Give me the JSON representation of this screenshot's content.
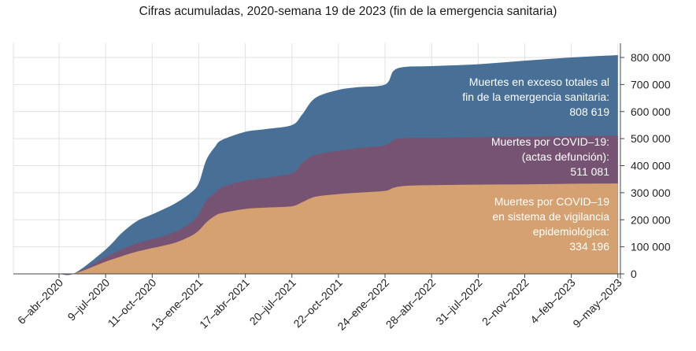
{
  "colors": {
    "excess": "#486f96",
    "actas": "#775373",
    "vigilancia": "#d6a170",
    "grid": "#e1e1e1",
    "axis": "#444444",
    "text": "#222222",
    "annotation_text": "#ffffff"
  },
  "chart_data": {
    "type": "area",
    "title": "Cifras acumuladas, 2020-semana 19 de 2023 (fin de la emergencia sanitaria)",
    "x_ticks": [
      "6–abr–2020",
      "9–jul–2020",
      "11–oct–2020",
      "13–ene–2021",
      "17–abr–2021",
      "20–jul–2021",
      "22–oct–2021",
      "24–ene–2022",
      "28–abr–2022",
      "31–jul–2022",
      "2–nov–2022",
      "4–feb–2023",
      "9–may–2023"
    ],
    "y_ticks": [
      "0",
      "100 000",
      "200 000",
      "300 000",
      "400 000",
      "500 000",
      "600 000",
      "700 000",
      "800 000"
    ],
    "ylim": [
      0,
      800000
    ],
    "y_axis_side": "right",
    "grid": true,
    "x": [
      "2020-04-06",
      "2020-05-08",
      "2020-07-09",
      "2020-08-10",
      "2020-09-10",
      "2020-10-11",
      "2020-11-26",
      "2020-12-28",
      "2021-01-13",
      "2021-01-28",
      "2021-02-15",
      "2021-03-01",
      "2021-04-17",
      "2021-05-27",
      "2021-07-20",
      "2021-08-10",
      "2021-09-05",
      "2021-10-22",
      "2021-11-30",
      "2022-01-24",
      "2022-02-10",
      "2022-03-05",
      "2022-04-28",
      "2022-07-31",
      "2022-11-02",
      "2023-02-04",
      "2023-05-09"
    ],
    "series": [
      {
        "name": "Muertes por COVID–19 en sistema de vigilancia epidemiológica:",
        "color": "#d6a170",
        "total_label": "334 196",
        "values": [
          0,
          2000,
          45000,
          65000,
          82000,
          95000,
          115000,
          140000,
          160000,
          190000,
          215000,
          225000,
          240000,
          245000,
          250000,
          265000,
          285000,
          295000,
          300000,
          307000,
          318000,
          325000,
          328000,
          330000,
          331000,
          333000,
          334196
        ]
      },
      {
        "name": "Muertes por COVID–19: (actas defunción):",
        "color": "#775373",
        "total_label": "511 081",
        "values": [
          0,
          2000,
          62000,
          90000,
          113000,
          128000,
          155000,
          190000,
          220000,
          270000,
          300000,
          320000,
          345000,
          355000,
          372000,
          410000,
          440000,
          455000,
          465000,
          475000,
          495000,
          502000,
          503000,
          505000,
          507000,
          509000,
          511081
        ]
      },
      {
        "name": "Muertes en exceso totales al fin de la emergencia sanitaria:",
        "color": "#486f96",
        "total_label": "808 619",
        "values": [
          0,
          3000,
          90000,
          150000,
          195000,
          220000,
          260000,
          300000,
          335000,
          420000,
          470000,
          495000,
          525000,
          535000,
          550000,
          590000,
          650000,
          680000,
          690000,
          700000,
          750000,
          765000,
          768000,
          775000,
          788000,
          800000,
          808619
        ]
      }
    ],
    "annotations": [
      {
        "lines": [
          "Muertes en exceso totales al",
          "fin de la emergencia sanitaria:",
          "808 619"
        ]
      },
      {
        "lines": [
          "Muertes por COVID–19:",
          "(actas defunción):",
          "511 081"
        ]
      },
      {
        "lines": [
          "Muertes por COVID–19",
          "en sistema de vigilancia",
          "epidemiológica:",
          "334 196"
        ]
      }
    ]
  }
}
